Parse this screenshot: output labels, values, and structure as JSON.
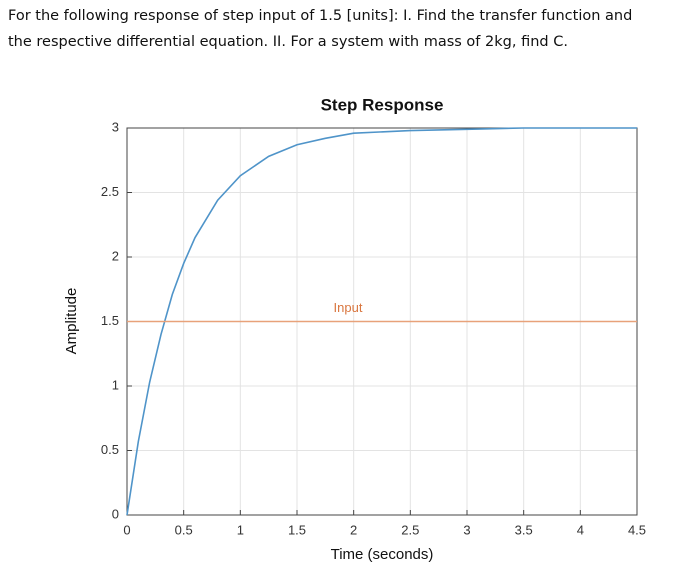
{
  "question": [
    "For the following response of step input of 1.5 [units]: I. Find the transfer function and",
    "the respective differential equation. II. For a system with mass of 2kg, find C."
  ],
  "chart_data": {
    "type": "line",
    "title": "Step Response",
    "x_label": "Time (seconds)",
    "y_label": "Amplitude",
    "xlim": [
      0,
      4.5
    ],
    "ylim": [
      0,
      3
    ],
    "xticks": [
      0,
      0.5,
      1,
      1.5,
      2,
      2.5,
      3,
      3.5,
      4,
      4.5
    ],
    "yticks": [
      0,
      0.5,
      1,
      1.5,
      2,
      2.5,
      3
    ],
    "grid": true,
    "series": [
      {
        "color": "#4f94c9",
        "x": [
          0,
          0.1,
          0.2,
          0.3,
          0.4,
          0.5,
          0.6,
          0.8,
          1,
          1.25,
          1.5,
          1.75,
          2,
          2.5,
          3,
          3.5,
          4,
          4.5
        ],
        "values": [
          0,
          0.57,
          1.03,
          1.4,
          1.71,
          1.95,
          2.15,
          2.44,
          2.63,
          2.78,
          2.87,
          2.92,
          2.96,
          2.98,
          2.99,
          3,
          3,
          3
        ]
      },
      {
        "name": "Input",
        "color": "#e8a27a",
        "x": [
          0,
          4.5
        ],
        "values": [
          1.5,
          1.5
        ]
      }
    ]
  }
}
